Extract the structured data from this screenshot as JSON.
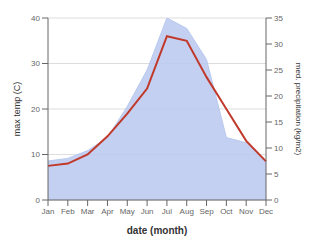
{
  "chart_data": {
    "type": "line",
    "categories": [
      "Jan",
      "Feb",
      "Mar",
      "Apr",
      "May",
      "Jun",
      "Jul",
      "Aug",
      "Sep",
      "Oct",
      "Nov",
      "Dec"
    ],
    "series": [
      {
        "type": "area",
        "axis": "y2",
        "color": "#b8c8ee",
        "values": [
          7.5,
          8.0,
          9.5,
          12.0,
          18.0,
          25.0,
          35.0,
          33.0,
          27.0,
          12.0,
          11.0,
          7.5
        ]
      },
      {
        "type": "line",
        "color": "#c0392b",
        "values": [
          7.5,
          8.0,
          10.0,
          14.0,
          19.0,
          24.5,
          36.0,
          35.0,
          27.0,
          20.0,
          13.0,
          8.5
        ]
      }
    ],
    "xlabel": "date (month)",
    "ylabel": "max temp (C)",
    "y2label": "med. precipitation (kg/m2)",
    "ylim": [
      0,
      40
    ],
    "yticks": [
      0,
      10,
      20,
      30,
      40
    ],
    "y2lim": [
      0,
      35
    ],
    "y2ticks": [
      0,
      5,
      10,
      15,
      20,
      25,
      30,
      35
    ],
    "grid": true
  }
}
